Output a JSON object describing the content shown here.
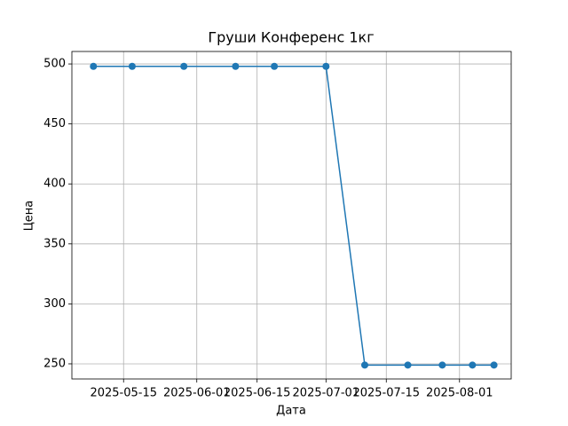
{
  "chart_data": {
    "type": "line",
    "title": "Груши Конференс 1кг",
    "xlabel": "Дата",
    "ylabel": "Цена",
    "x": [
      "2025-05-08",
      "2025-05-17",
      "2025-05-29",
      "2025-06-10",
      "2025-06-19",
      "2025-07-01",
      "2025-07-10",
      "2025-07-20",
      "2025-07-28",
      "2025-08-04",
      "2025-08-09"
    ],
    "values": [
      498,
      498,
      498,
      498,
      498,
      498,
      249,
      249,
      249,
      249,
      249
    ],
    "color": "#1f77b4",
    "xlim": [
      "2025-05-03",
      "2025-08-13"
    ],
    "xticks": [
      "2025-05-15",
      "2025-06-01",
      "2025-06-15",
      "2025-07-01",
      "2025-07-15",
      "2025-08-01"
    ],
    "ylim": [
      237.4,
      510.4
    ],
    "yticks": [
      250,
      300,
      350,
      400,
      450,
      500
    ],
    "grid": true
  }
}
